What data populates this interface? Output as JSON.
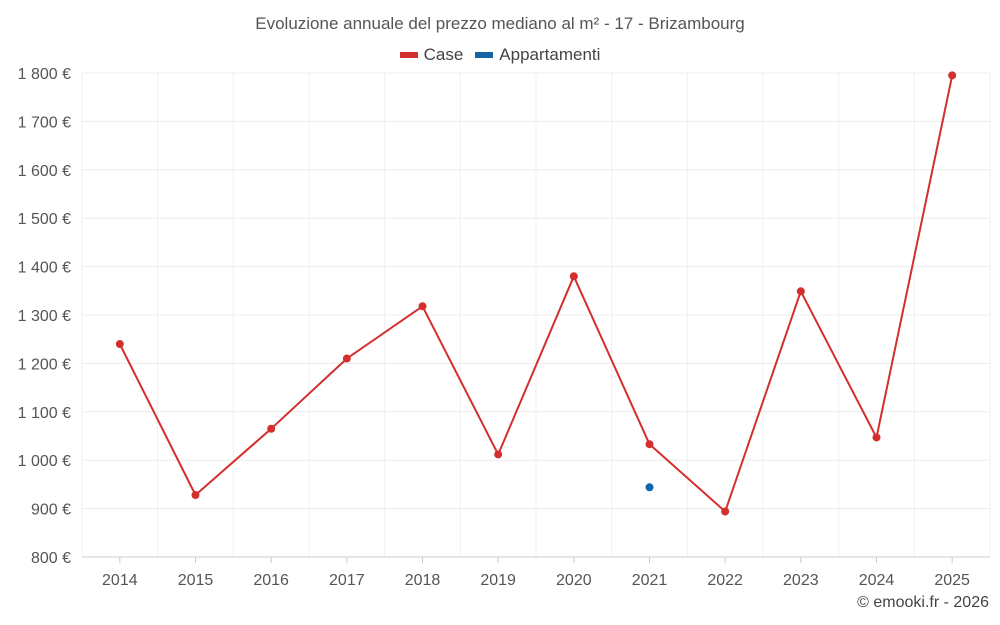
{
  "chart_data": {
    "type": "line",
    "title": "Evoluzione annuale del prezzo mediano al m² - 17 - Brizambourg",
    "categories": [
      "2014",
      "2015",
      "2016",
      "2017",
      "2018",
      "2019",
      "2020",
      "2021",
      "2022",
      "2023",
      "2024",
      "2025"
    ],
    "series": [
      {
        "name": "Case",
        "color": "#d32f2f",
        "values": [
          1240,
          928,
          1065,
          1210,
          1318,
          1012,
          1380,
          1033,
          894,
          1349,
          1047,
          1795
        ]
      },
      {
        "name": "Appartamenti",
        "color": "#1565a6",
        "values": [
          null,
          null,
          null,
          null,
          null,
          null,
          null,
          944,
          null,
          null,
          null,
          null
        ]
      }
    ],
    "y_ticks": [
      800,
      900,
      1000,
      1100,
      1200,
      1300,
      1400,
      1500,
      1600,
      1700,
      1800
    ],
    "y_tick_labels": [
      "800 €",
      "900 €",
      "1 000 €",
      "1 100 €",
      "1 200 €",
      "1 300 €",
      "1 400 €",
      "1 500 €",
      "1 600 €",
      "1 700 €",
      "1 800 €"
    ],
    "ylim": [
      800,
      1800
    ],
    "xlabel": "",
    "ylabel": "",
    "grid": true,
    "legend_position": "top-center"
  },
  "credit": "© emooki.fr - 2026"
}
